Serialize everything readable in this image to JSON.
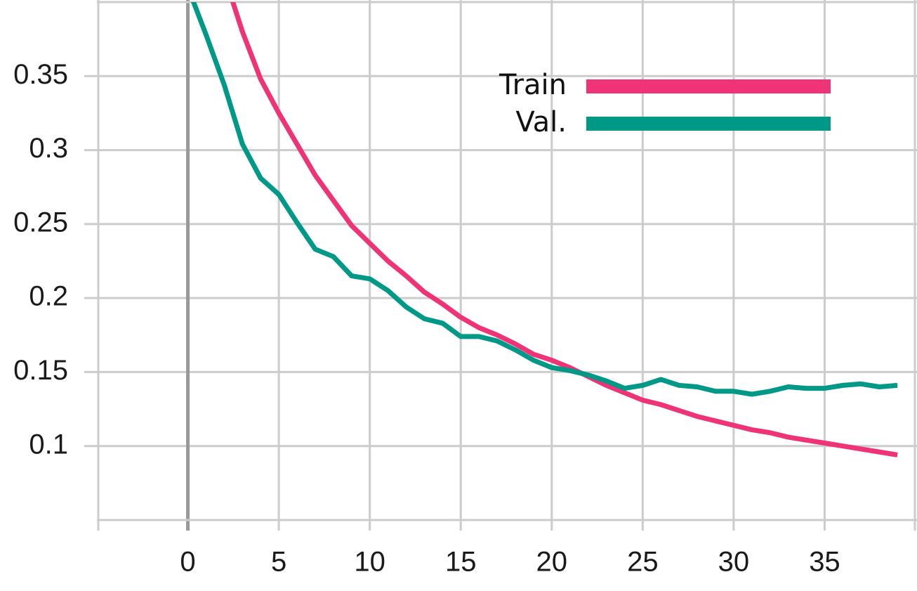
{
  "chart_data": {
    "type": "line",
    "x": [
      0,
      1,
      2,
      3,
      4,
      5,
      6,
      7,
      8,
      9,
      10,
      11,
      12,
      13,
      14,
      15,
      16,
      17,
      18,
      19,
      20,
      21,
      22,
      23,
      24,
      25,
      26,
      27,
      28,
      29,
      30,
      31,
      32,
      33,
      34,
      35,
      36,
      37,
      38,
      39
    ],
    "series": [
      {
        "name": "Train",
        "color": "#ee3377",
        "values": [
          null,
          null,
          0.418,
          0.38,
          0.348,
          0.325,
          0.304,
          0.283,
          0.266,
          0.249,
          0.237,
          0.225,
          0.215,
          0.204,
          0.196,
          0.187,
          0.18,
          0.175,
          0.169,
          0.162,
          0.158,
          0.153,
          0.147,
          0.141,
          0.136,
          0.131,
          0.128,
          0.124,
          0.12,
          0.117,
          0.114,
          0.111,
          0.109,
          0.106,
          0.104,
          0.102,
          0.1,
          0.098,
          0.096,
          0.094
        ]
      },
      {
        "name": "Val.",
        "color": "#009988",
        "values": [
          0.41,
          0.378,
          0.344,
          0.304,
          0.281,
          0.27,
          0.251,
          0.233,
          0.228,
          0.215,
          0.213,
          0.205,
          0.194,
          0.186,
          0.183,
          0.174,
          0.174,
          0.171,
          0.165,
          0.158,
          0.153,
          0.151,
          0.148,
          0.144,
          0.139,
          0.141,
          0.145,
          0.141,
          0.14,
          0.137,
          0.137,
          0.135,
          0.137,
          0.14,
          0.139,
          0.139,
          0.141,
          0.142,
          0.14,
          0.141
        ]
      }
    ],
    "xlim": [
      -5,
      40
    ],
    "ylim": [
      0.05,
      0.4
    ],
    "xticks": [
      0,
      5,
      10,
      15,
      20,
      25,
      30,
      35
    ],
    "yticks": [
      0.1,
      0.15,
      0.2,
      0.25,
      0.3,
      0.35
    ],
    "grid": true,
    "legend": "upper right"
  }
}
